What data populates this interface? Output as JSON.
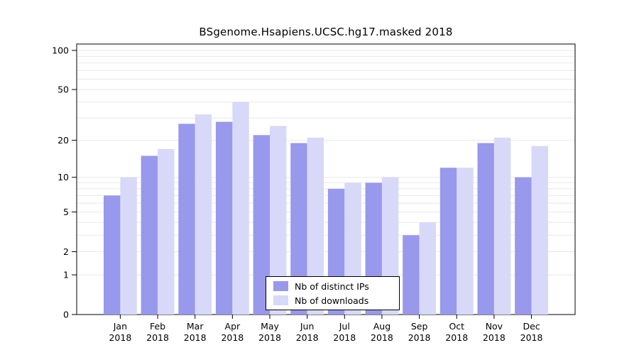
{
  "chart_data": {
    "type": "bar",
    "title": "BSgenome.Hsapiens.UCSC.hg17.masked 2018",
    "categories": [
      "Jan",
      "Feb",
      "Mar",
      "Apr",
      "May",
      "Jun",
      "Jul",
      "Aug",
      "Sep",
      "Oct",
      "Nov",
      "Dec"
    ],
    "year": "2018",
    "series": [
      {
        "name": "Nb of distinct IPs",
        "color": "#9898ec",
        "values": [
          7,
          15,
          27,
          28,
          22,
          19,
          8,
          9,
          3,
          12,
          19,
          10
        ]
      },
      {
        "name": "Nb of downloads",
        "color": "#d8d8f8",
        "values": [
          10,
          17,
          32,
          40,
          26,
          21,
          9,
          10,
          4,
          12,
          21,
          18
        ]
      }
    ],
    "y_axis": {
      "scale": "log1p",
      "ticks": [
        0,
        1,
        2,
        5,
        10,
        20,
        50,
        100
      ],
      "minor_gridlines": [
        1,
        2,
        3,
        4,
        5,
        6,
        7,
        8,
        9,
        10,
        20,
        30,
        40,
        50,
        60,
        70,
        80,
        90,
        100
      ],
      "max": 100
    },
    "legend": {
      "position": "bottom-center"
    },
    "grid": true
  }
}
